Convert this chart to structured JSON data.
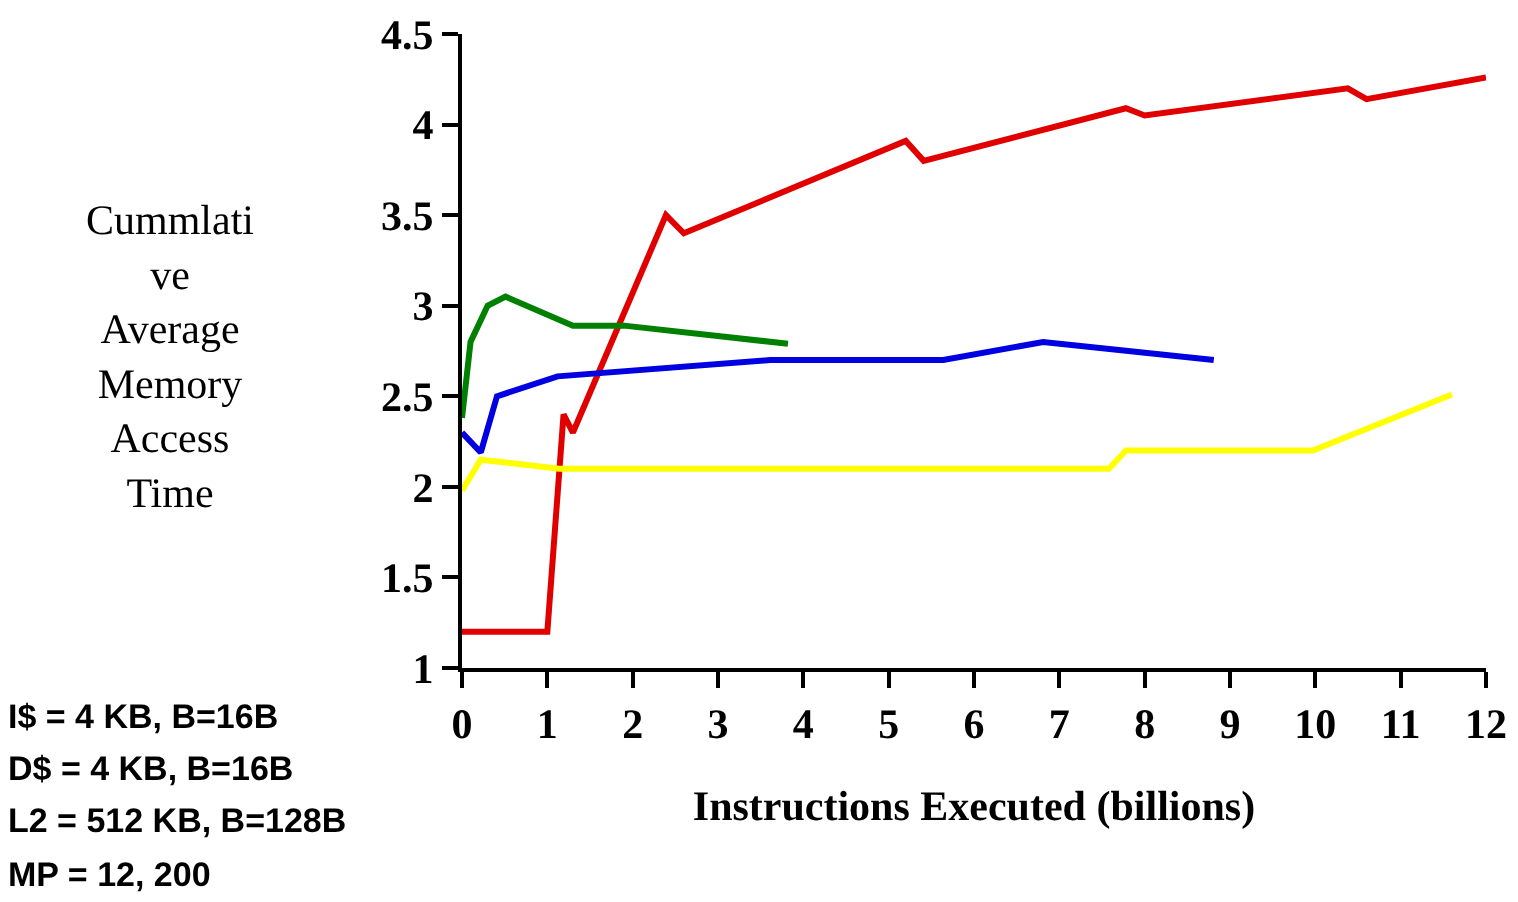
{
  "chart_data": {
    "type": "line",
    "xlabel": "Instructions Executed (billions)",
    "ylabel": "Cummlati\nve\nAverage\nMemory\nAccess\nTime",
    "xlim": [
      0,
      12
    ],
    "xticks": [
      0,
      1,
      2,
      3,
      4,
      5,
      6,
      7,
      8,
      9,
      10,
      11,
      12
    ],
    "ylim": [
      1,
      4.5
    ],
    "yticks": [
      1,
      1.5,
      2,
      2.5,
      3,
      3.5,
      4,
      4.5
    ],
    "grid": false,
    "legend": false,
    "marker": "none",
    "line_style": "solid",
    "series": [
      {
        "color": "#e00000",
        "x": [
          0,
          1.0,
          1.19,
          1.3,
          2.39,
          2.6,
          5.2,
          5.41,
          7.78,
          8.0,
          10.38,
          10.6,
          12
        ],
        "values": [
          1.2,
          1.2,
          2.4,
          2.3,
          3.5,
          3.4,
          3.91,
          3.8,
          4.09,
          4.05,
          4.2,
          4.14,
          4.26
        ]
      },
      {
        "color": "#008000",
        "x": [
          0,
          0.1,
          0.3,
          0.51,
          1.3,
          1.9,
          3.82
        ],
        "values": [
          2.38,
          2.8,
          3.0,
          3.05,
          2.89,
          2.89,
          2.79
        ]
      },
      {
        "color": "#0000e0",
        "x": [
          0,
          0.22,
          0.41,
          1.12,
          3.61,
          5.64,
          6.81,
          8.81
        ],
        "values": [
          2.3,
          2.19,
          2.5,
          2.61,
          2.7,
          2.7,
          2.8,
          2.7
        ]
      },
      {
        "color": "#ffff00",
        "x": [
          0,
          0.22,
          1.14,
          7.58,
          7.78,
          9.97,
          11.6
        ],
        "values": [
          1.98,
          2.15,
          2.1,
          2.1,
          2.2,
          2.2,
          2.51
        ]
      }
    ],
    "annotations": [
      "I$ = 4 KB, B=16B",
      "D$ = 4 KB, B=16B",
      "L2 = 512 KB, B=128B",
      "MP = 12, 200"
    ]
  }
}
